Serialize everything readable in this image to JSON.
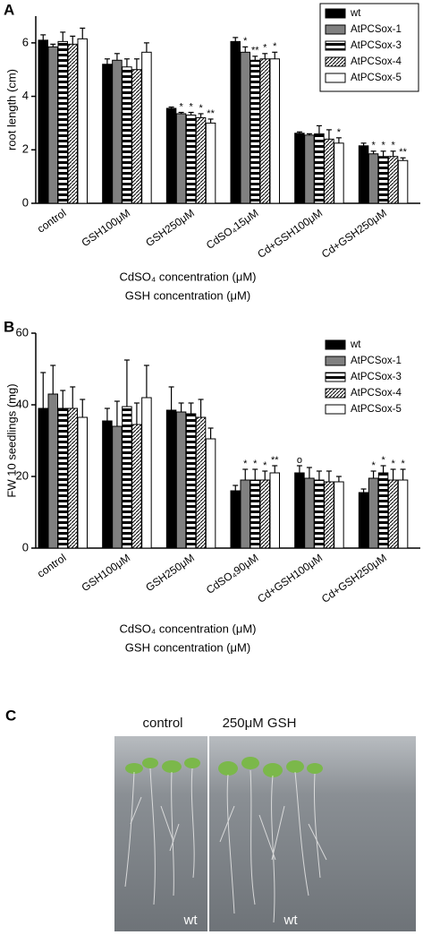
{
  "chart_data": [
    {
      "type": "bar",
      "panel_label": "A",
      "y_label": "root length (cm)",
      "x_label_lines": [
        "CdSO₄ concentration (μM)",
        "GSH concentration (μM)"
      ],
      "categories": [
        "control",
        "GSH100μM",
        "GSH250μM",
        "CdSO₄15μM",
        "Cd+GSH100μM",
        "Cd+GSH250μM"
      ],
      "ylim": [
        0,
        7
      ],
      "yticks": [
        0,
        2,
        4,
        6
      ],
      "legend": "top-right",
      "legend_box": true,
      "series": [
        {
          "name": "wt",
          "color": "#000000",
          "fill_style": "solid",
          "values": [
            6.1,
            5.2,
            3.55,
            6.05,
            2.62,
            2.15
          ],
          "errors": [
            0.2,
            0.2,
            0.05,
            0.15,
            0.05,
            0.1
          ],
          "annotations": [
            null,
            null,
            null,
            null,
            null,
            null
          ]
        },
        {
          "name": "AtPCSox-1",
          "color": "#808080",
          "fill_style": "solid",
          "values": [
            5.85,
            5.35,
            3.35,
            5.65,
            2.55,
            1.85
          ],
          "errors": [
            0.1,
            0.25,
            0.05,
            0.2,
            0.05,
            0.1
          ],
          "annotations": [
            null,
            null,
            "*",
            "*",
            null,
            "*"
          ]
        },
        {
          "name": "AtPCSox-3",
          "color": "#000000",
          "fill_style": "stripes",
          "values": [
            6.05,
            5.1,
            3.3,
            5.35,
            2.6,
            1.75
          ],
          "errors": [
            0.35,
            0.3,
            0.1,
            0.15,
            0.3,
            0.2
          ],
          "annotations": [
            null,
            null,
            "*",
            "**",
            null,
            "*"
          ]
        },
        {
          "name": "AtPCSox-4",
          "color": "#000000",
          "fill_style": "hatch",
          "values": [
            5.95,
            5.0,
            3.2,
            5.4,
            2.4,
            1.75
          ],
          "errors": [
            0.3,
            0.4,
            0.15,
            0.2,
            0.35,
            0.2
          ],
          "annotations": [
            null,
            null,
            "*",
            "*",
            null,
            "*"
          ]
        },
        {
          "name": "AtPCSox-5",
          "color": "#ffffff",
          "fill_style": "solid",
          "values": [
            6.15,
            5.65,
            3.0,
            5.4,
            2.25,
            1.6
          ],
          "errors": [
            0.4,
            0.35,
            0.15,
            0.25,
            0.2,
            0.1
          ],
          "annotations": [
            null,
            null,
            "**",
            "*",
            "*",
            "**"
          ]
        }
      ]
    },
    {
      "type": "bar",
      "panel_label": "B",
      "y_label": "FW 10 seedlings (mg)",
      "x_label_lines": [
        "CdSO₄ concentration (μM)",
        "GSH concentration (μM)"
      ],
      "categories": [
        "control",
        "GSH100μM",
        "GSH250μM",
        "CdSO₄90μM",
        "Cd+GSH100μM",
        "Cd+GSH250μM"
      ],
      "ylim": [
        0,
        60
      ],
      "yticks": [
        0,
        20,
        40,
        60
      ],
      "legend": "top-right",
      "legend_box": false,
      "series": [
        {
          "name": "wt",
          "color": "#000000",
          "fill_style": "solid",
          "values": [
            39,
            35.5,
            38.5,
            16,
            21,
            15.5
          ],
          "errors": [
            10,
            3.5,
            6.5,
            1.5,
            2,
            1
          ],
          "annotations": [
            null,
            null,
            null,
            null,
            "o",
            null
          ]
        },
        {
          "name": "AtPCSox-1",
          "color": "#808080",
          "fill_style": "solid",
          "values": [
            43,
            34,
            38,
            19,
            19.5,
            19.5
          ],
          "errors": [
            8,
            7,
            2.5,
            3,
            3,
            2
          ],
          "annotations": [
            null,
            null,
            null,
            "*",
            null,
            "*"
          ]
        },
        {
          "name": "AtPCSox-3",
          "color": "#000000",
          "fill_style": "stripes",
          "values": [
            39,
            39.5,
            37.5,
            19,
            19,
            21
          ],
          "errors": [
            5,
            13,
            3,
            3,
            2.5,
            2
          ],
          "annotations": [
            null,
            null,
            null,
            "*",
            null,
            "*"
          ]
        },
        {
          "name": "AtPCSox-4",
          "color": "#000000",
          "fill_style": "hatch",
          "values": [
            39,
            34.5,
            36.5,
            19,
            18.5,
            19
          ],
          "errors": [
            6,
            6,
            5,
            2.5,
            3,
            3
          ],
          "annotations": [
            null,
            null,
            null,
            "*",
            null,
            "*"
          ]
        },
        {
          "name": "AtPCSox-5",
          "color": "#ffffff",
          "fill_style": "solid",
          "values": [
            36.5,
            42,
            30.5,
            21,
            18.5,
            19
          ],
          "errors": [
            5,
            9,
            3,
            2,
            1.5,
            3
          ],
          "annotations": [
            null,
            null,
            null,
            "**",
            null,
            "*"
          ]
        }
      ]
    }
  ],
  "photo_panel": {
    "panel_label": "C",
    "left_label": "control",
    "right_label": "250μM GSH",
    "left_corner": "wt",
    "right_corner": "wt"
  }
}
